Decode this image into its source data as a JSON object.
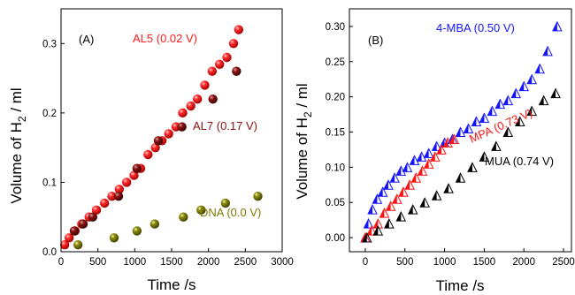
{
  "chart_data": [
    {
      "type": "scatter",
      "panel_label": "(A)",
      "xlabel": "Time /s",
      "ylabel_main": "Volume of H",
      "ylabel_sub": "2",
      "ylabel_tail": " / ml",
      "xlim": [
        0,
        3000
      ],
      "ylim": [
        0,
        0.35
      ],
      "xticks": [
        0,
        500,
        1000,
        1500,
        2000,
        2500,
        3000
      ],
      "yticks": [
        0.0,
        0.1,
        0.2,
        0.3
      ],
      "ytick_labels": [
        "0.0",
        "0.1",
        "0.2",
        "0.3"
      ],
      "series": [
        {
          "name": "AL5 (0.02 V)",
          "color": "#ff1a1a",
          "marker": "sphere",
          "x": [
            50,
            110,
            190,
            280,
            380,
            480,
            590,
            690,
            790,
            890,
            990,
            1080,
            1180,
            1280,
            1370,
            1460,
            1560,
            1650,
            1760,
            1850,
            1950,
            2050,
            2150,
            2250,
            2340,
            2410
          ],
          "y": [
            0.01,
            0.02,
            0.03,
            0.04,
            0.05,
            0.06,
            0.07,
            0.08,
            0.09,
            0.1,
            0.11,
            0.12,
            0.14,
            0.15,
            0.16,
            0.17,
            0.18,
            0.2,
            0.21,
            0.22,
            0.24,
            0.26,
            0.27,
            0.28,
            0.3,
            0.32
          ]
        },
        {
          "name": "AL7 (0.17 V)",
          "color": "#8b1010",
          "marker": "sphere",
          "x": [
            180,
            300,
            430,
            780,
            1030,
            1320,
            1640,
            2060,
            2380
          ],
          "y": [
            0.03,
            0.04,
            0.05,
            0.08,
            0.12,
            0.16,
            0.18,
            0.22,
            0.26
          ],
          "label": "AL7 (0.17 V)"
        },
        {
          "name": "DNA (0.0 V)",
          "color": "#7a7a00",
          "marker": "sphere",
          "x": [
            230,
            720,
            1030,
            1270,
            1660,
            1900,
            2230,
            2670
          ],
          "y": [
            0.01,
            0.02,
            0.03,
            0.04,
            0.05,
            0.06,
            0.07,
            0.08
          ],
          "label": "DNA (0.0 V)"
        }
      ]
    },
    {
      "type": "scatter",
      "panel_label": "(B)",
      "xlabel": "Time /s",
      "ylabel_main": "Volume of H",
      "ylabel_sub": "2",
      "ylabel_tail": " / ml",
      "xlim": [
        -200,
        2600
      ],
      "ylim": [
        -0.02,
        0.325
      ],
      "xticks": [
        0,
        500,
        1000,
        1500,
        2000,
        2500
      ],
      "yticks": [
        0.0,
        0.05,
        0.1,
        0.15,
        0.2,
        0.25,
        0.3
      ],
      "ytick_labels": [
        "0.00",
        "0.05",
        "0.10",
        "0.15",
        "0.20",
        "0.25",
        "0.30"
      ],
      "series": [
        {
          "name": "4-MBA (0.50 V)",
          "color": "#1414ff",
          "marker": "half-triangle",
          "x": [
            0,
            40,
            90,
            150,
            220,
            290,
            370,
            450,
            530,
            620,
            710,
            800,
            900,
            1000,
            1100,
            1200,
            1300,
            1400,
            1500,
            1600,
            1700,
            1800,
            1900,
            2000,
            2100,
            2200,
            2300,
            2420
          ],
          "y": [
            0.0,
            0.02,
            0.04,
            0.055,
            0.065,
            0.075,
            0.085,
            0.095,
            0.1,
            0.11,
            0.115,
            0.12,
            0.13,
            0.135,
            0.14,
            0.15,
            0.155,
            0.165,
            0.17,
            0.18,
            0.19,
            0.195,
            0.205,
            0.215,
            0.225,
            0.24,
            0.265,
            0.3
          ]
        },
        {
          "name": "MPA (0.73 V)",
          "color": "#ff1414",
          "marker": "half-triangle",
          "x": [
            0,
            80,
            160,
            240,
            320,
            400,
            480,
            560,
            640,
            720,
            800,
            880,
            960,
            1040,
            1120
          ],
          "y": [
            0.0,
            0.01,
            0.02,
            0.035,
            0.045,
            0.055,
            0.065,
            0.075,
            0.085,
            0.095,
            0.105,
            0.115,
            0.125,
            0.135,
            0.14
          ]
        },
        {
          "name": "MUA (0.74 V)",
          "color": "#000000",
          "marker": "half-triangle",
          "x": [
            20,
            160,
            300,
            450,
            600,
            750,
            900,
            1050,
            1200,
            1350,
            1500,
            1650,
            1800,
            1950,
            2100,
            2250,
            2400
          ],
          "y": [
            0.0,
            0.01,
            0.02,
            0.03,
            0.04,
            0.05,
            0.06,
            0.07,
            0.085,
            0.1,
            0.115,
            0.13,
            0.15,
            0.165,
            0.18,
            0.195,
            0.205
          ]
        }
      ]
    }
  ]
}
